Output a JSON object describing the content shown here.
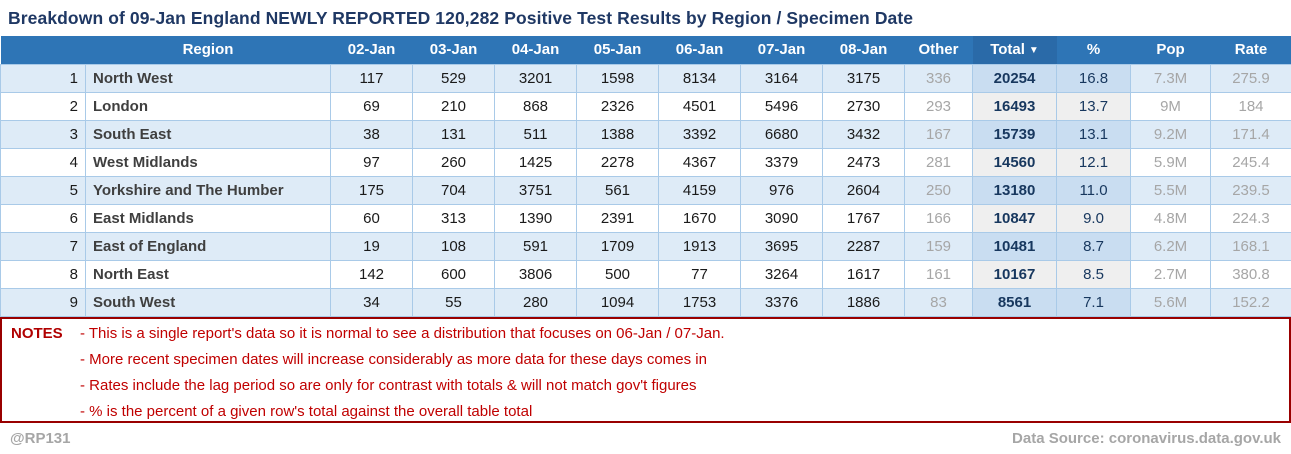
{
  "title": "Breakdown of 09-Jan England NEWLY REPORTED 120,282 Positive Test Results by Region / Specimen Date",
  "colors": {
    "header_blue": "#2e75b6",
    "stripe_blue": "#deebf7",
    "total_navy": "#17375e",
    "note_red": "#c00000",
    "notes_border_red": "#990000",
    "muted_gray": "#a6a6a6",
    "title_navy": "#1f3864"
  },
  "chart_data": {
    "type": "table",
    "title": "Breakdown of 09-Jan England NEWLY REPORTED 120,282 Positive Test Results by Region / Specimen Date",
    "header": {
      "region": "Region",
      "dates": [
        "02-Jan",
        "03-Jan",
        "04-Jan",
        "05-Jan",
        "06-Jan",
        "07-Jan",
        "08-Jan"
      ],
      "other": "Other",
      "total": "Total",
      "sort_arrow": "▼",
      "sort_column": "Total",
      "sort_direction": "descending",
      "pct": "%",
      "pop": "Pop",
      "rate": "Rate"
    },
    "rows": [
      {
        "rank": "1",
        "region": "North West",
        "daily": [
          "117",
          "529",
          "3201",
          "1598",
          "8134",
          "3164",
          "3175"
        ],
        "other": "336",
        "total": "20254",
        "pct": "16.8",
        "pop": "7.3M",
        "rate": "275.9"
      },
      {
        "rank": "2",
        "region": "London",
        "daily": [
          "69",
          "210",
          "868",
          "2326",
          "4501",
          "5496",
          "2730"
        ],
        "other": "293",
        "total": "16493",
        "pct": "13.7",
        "pop": "9M",
        "rate": "184"
      },
      {
        "rank": "3",
        "region": "South East",
        "daily": [
          "38",
          "131",
          "511",
          "1388",
          "3392",
          "6680",
          "3432"
        ],
        "other": "167",
        "total": "15739",
        "pct": "13.1",
        "pop": "9.2M",
        "rate": "171.4"
      },
      {
        "rank": "4",
        "region": "West Midlands",
        "daily": [
          "97",
          "260",
          "1425",
          "2278",
          "4367",
          "3379",
          "2473"
        ],
        "other": "281",
        "total": "14560",
        "pct": "12.1",
        "pop": "5.9M",
        "rate": "245.4"
      },
      {
        "rank": "5",
        "region": "Yorkshire and The Humber",
        "daily": [
          "175",
          "704",
          "3751",
          "561",
          "4159",
          "976",
          "2604"
        ],
        "other": "250",
        "total": "13180",
        "pct": "11.0",
        "pop": "5.5M",
        "rate": "239.5"
      },
      {
        "rank": "6",
        "region": "East Midlands",
        "daily": [
          "60",
          "313",
          "1390",
          "2391",
          "1670",
          "3090",
          "1767"
        ],
        "other": "166",
        "total": "10847",
        "pct": "9.0",
        "pop": "4.8M",
        "rate": "224.3"
      },
      {
        "rank": "7",
        "region": "East of England",
        "daily": [
          "19",
          "108",
          "591",
          "1709",
          "1913",
          "3695",
          "2287"
        ],
        "other": "159",
        "total": "10481",
        "pct": "8.7",
        "pop": "6.2M",
        "rate": "168.1"
      },
      {
        "rank": "8",
        "region": "North East",
        "daily": [
          "142",
          "600",
          "3806",
          "500",
          "77",
          "3264",
          "1617"
        ],
        "other": "161",
        "total": "10167",
        "pct": "8.5",
        "pop": "2.7M",
        "rate": "380.8"
      },
      {
        "rank": "9",
        "region": "South West",
        "daily": [
          "34",
          "55",
          "280",
          "1094",
          "1753",
          "3376",
          "1886"
        ],
        "other": "83",
        "total": "8561",
        "pct": "7.1",
        "pop": "5.6M",
        "rate": "152.2"
      }
    ]
  },
  "notes": {
    "label": "NOTES",
    "items": [
      "- This is a single report's data so it is normal to see a distribution that focuses on 06-Jan / 07-Jan.",
      "- More recent specimen dates will increase considerably as more data for these days comes in",
      "- Rates include the lag period so are only for contrast with totals & will not match gov't figures",
      "- % is the percent of a given row's total against the overall table total"
    ]
  },
  "footer": {
    "handle": "@RP131",
    "source": "Data Source: coronavirus.data.gov.uk"
  }
}
